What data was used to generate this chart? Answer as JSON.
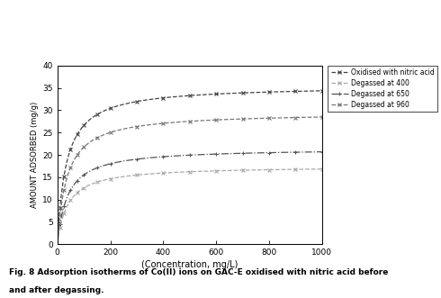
{
  "title_line1": "Fig. 8 Adsorption isotherms of Co(II) ions on GAC-E oxidised with nitric acid before",
  "title_line2": "and after degassing.",
  "xlabel": "(Concentration, mg/L)",
  "ylabel": "AMOUNT ADSORBED (mg/g)",
  "xlim": [
    0,
    1000
  ],
  "ylim": [
    0,
    40
  ],
  "yticks": [
    0,
    5,
    10,
    15,
    20,
    25,
    30,
    35,
    40
  ],
  "xticks": [
    0,
    200,
    400,
    600,
    800,
    1000
  ],
  "legend_labels": [
    "Oxidised with nitric acid",
    "Degassed at 400",
    "Degassed at 650",
    "Degassed at 960"
  ],
  "series": [
    {
      "label": "Oxidised with nitric acid",
      "Qmax": 35.5,
      "b": 0.03,
      "linestyle": "--",
      "marker": "x",
      "color": "#555555"
    },
    {
      "label": "Degassed at 960",
      "Qmax": 29.5,
      "b": 0.028,
      "linestyle": "--",
      "marker": "x",
      "color": "#777777"
    },
    {
      "label": "Degassed at 650",
      "Qmax": 21.5,
      "b": 0.028,
      "linestyle": "-.",
      "marker": "+",
      "color": "#555555"
    },
    {
      "label": "Degassed at 400",
      "Qmax": 17.5,
      "b": 0.028,
      "linestyle": "--",
      "marker": "x",
      "color": "#999999"
    }
  ],
  "bg_color": "#ffffff",
  "figsize": [
    4.9,
    3.31
  ],
  "dpi": 100
}
